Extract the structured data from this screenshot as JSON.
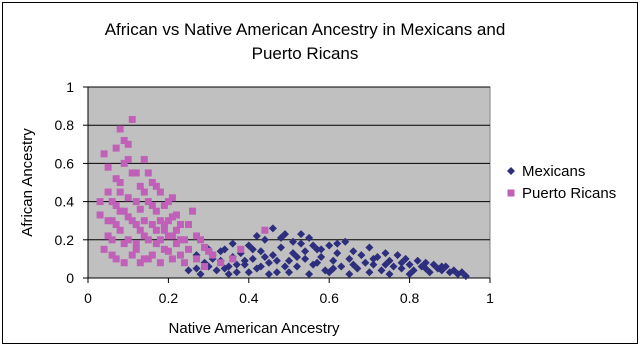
{
  "chart_data": {
    "type": "scatter",
    "title_line1": "African vs Native American Ancestry in Mexicans and",
    "title_line2": "Puerto Ricans",
    "xlabel": "Native American Ancestry",
    "ylabel": "African Ancestry",
    "xlim": [
      0,
      1
    ],
    "ylim": [
      0,
      1
    ],
    "x_ticks": [
      "0",
      "0.2",
      "0.4",
      "0.6",
      "0.8",
      "1"
    ],
    "y_ticks": [
      "0",
      "0.2",
      "0.4",
      "0.6",
      "0.8",
      "1"
    ],
    "grid": "horizontal",
    "plot_background": "#c0c0c0",
    "legend_position": "right",
    "series": [
      {
        "name": "Mexicans",
        "marker": "diamond",
        "color": "#2e2e7e",
        "points": [
          [
            0.27,
            0.05
          ],
          [
            0.29,
            0.08
          ],
          [
            0.31,
            0.12
          ],
          [
            0.32,
            0.04
          ],
          [
            0.33,
            0.09
          ],
          [
            0.34,
            0.15
          ],
          [
            0.35,
            0.06
          ],
          [
            0.36,
            0.11
          ],
          [
            0.37,
            0.03
          ],
          [
            0.38,
            0.13
          ],
          [
            0.39,
            0.07
          ],
          [
            0.4,
            0.17
          ],
          [
            0.41,
            0.1
          ],
          [
            0.42,
            0.05
          ],
          [
            0.43,
            0.14
          ],
          [
            0.44,
            0.2
          ],
          [
            0.45,
            0.08
          ],
          [
            0.46,
            0.12
          ],
          [
            0.47,
            0.03
          ],
          [
            0.48,
            0.16
          ],
          [
            0.49,
            0.23
          ],
          [
            0.5,
            0.09
          ],
          [
            0.51,
            0.13
          ],
          [
            0.52,
            0.06
          ],
          [
            0.53,
            0.18
          ],
          [
            0.54,
            0.1
          ],
          [
            0.55,
            0.21
          ],
          [
            0.56,
            0.07
          ],
          [
            0.57,
            0.15
          ],
          [
            0.58,
            0.11
          ],
          [
            0.59,
            0.04
          ],
          [
            0.6,
            0.17
          ],
          [
            0.61,
            0.09
          ],
          [
            0.62,
            0.13
          ],
          [
            0.63,
            0.06
          ],
          [
            0.64,
            0.19
          ],
          [
            0.65,
            0.1
          ],
          [
            0.66,
            0.14
          ],
          [
            0.67,
            0.05
          ],
          [
            0.68,
            0.12
          ],
          [
            0.69,
            0.08
          ],
          [
            0.7,
            0.16
          ],
          [
            0.71,
            0.07
          ],
          [
            0.72,
            0.11
          ],
          [
            0.73,
            0.04
          ],
          [
            0.74,
            0.13
          ],
          [
            0.75,
            0.09
          ],
          [
            0.76,
            0.06
          ],
          [
            0.77,
            0.12
          ],
          [
            0.78,
            0.05
          ],
          [
            0.79,
            0.1
          ],
          [
            0.8,
            0.07
          ],
          [
            0.81,
            0.04
          ],
          [
            0.82,
            0.09
          ],
          [
            0.83,
            0.06
          ],
          [
            0.84,
            0.08
          ],
          [
            0.85,
            0.03
          ],
          [
            0.86,
            0.07
          ],
          [
            0.87,
            0.05
          ],
          [
            0.88,
            0.04
          ],
          [
            0.89,
            0.06
          ],
          [
            0.9,
            0.03
          ],
          [
            0.91,
            0.04
          ],
          [
            0.92,
            0.02
          ],
          [
            0.93,
            0.03
          ],
          [
            0.94,
            0.01
          ],
          [
            0.28,
            0.02
          ],
          [
            0.3,
            0.06
          ],
          [
            0.35,
            0.02
          ],
          [
            0.4,
            0.03
          ],
          [
            0.45,
            0.02
          ],
          [
            0.5,
            0.03
          ],
          [
            0.55,
            0.02
          ],
          [
            0.6,
            0.03
          ],
          [
            0.65,
            0.02
          ],
          [
            0.7,
            0.03
          ],
          [
            0.75,
            0.02
          ],
          [
            0.8,
            0.02
          ],
          [
            0.46,
            0.26
          ],
          [
            0.51,
            0.19
          ],
          [
            0.42,
            0.22
          ],
          [
            0.56,
            0.17
          ],
          [
            0.62,
            0.18
          ],
          [
            0.36,
            0.18
          ],
          [
            0.33,
            0.14
          ],
          [
            0.31,
            0.1
          ],
          [
            0.27,
            0.12
          ],
          [
            0.25,
            0.04
          ],
          [
            0.3,
            0.15
          ],
          [
            0.48,
            0.21
          ],
          [
            0.53,
            0.23
          ],
          [
            0.58,
            0.15
          ],
          [
            0.44,
            0.11
          ],
          [
            0.39,
            0.09
          ],
          [
            0.43,
            0.06
          ],
          [
            0.47,
            0.09
          ],
          [
            0.52,
            0.11
          ],
          [
            0.57,
            0.08
          ],
          [
            0.61,
            0.05
          ],
          [
            0.66,
            0.07
          ],
          [
            0.71,
            0.1
          ],
          [
            0.74,
            0.07
          ],
          [
            0.78,
            0.08
          ],
          [
            0.84,
            0.05
          ],
          [
            0.88,
            0.06
          ],
          [
            0.41,
            0.15
          ],
          [
            0.37,
            0.07
          ],
          [
            0.34,
            0.05
          ],
          [
            0.54,
            0.14
          ],
          [
            0.49,
            0.06
          ]
        ]
      },
      {
        "name": "Puerto Ricans",
        "marker": "square",
        "color": "#c060b8",
        "points": [
          [
            0.03,
            0.33
          ],
          [
            0.04,
            0.65
          ],
          [
            0.05,
            0.22
          ],
          [
            0.05,
            0.45
          ],
          [
            0.06,
            0.3
          ],
          [
            0.06,
            0.12
          ],
          [
            0.07,
            0.52
          ],
          [
            0.07,
            0.38
          ],
          [
            0.08,
            0.78
          ],
          [
            0.08,
            0.25
          ],
          [
            0.09,
            0.6
          ],
          [
            0.09,
            0.18
          ],
          [
            0.1,
            0.42
          ],
          [
            0.1,
            0.7
          ],
          [
            0.11,
            0.83
          ],
          [
            0.11,
            0.3
          ],
          [
            0.12,
            0.55
          ],
          [
            0.12,
            0.15
          ],
          [
            0.13,
            0.36
          ],
          [
            0.13,
            0.48
          ],
          [
            0.14,
            0.62
          ],
          [
            0.14,
            0.22
          ],
          [
            0.15,
            0.4
          ],
          [
            0.15,
            0.1
          ],
          [
            0.16,
            0.28
          ],
          [
            0.16,
            0.5
          ],
          [
            0.17,
            0.35
          ],
          [
            0.17,
            0.18
          ],
          [
            0.18,
            0.45
          ],
          [
            0.18,
            0.08
          ],
          [
            0.19,
            0.25
          ],
          [
            0.19,
            0.38
          ],
          [
            0.2,
            0.3
          ],
          [
            0.2,
            0.14
          ],
          [
            0.21,
            0.22
          ],
          [
            0.21,
            0.42
          ],
          [
            0.22,
            0.18
          ],
          [
            0.22,
            0.33
          ],
          [
            0.23,
            0.12
          ],
          [
            0.23,
            0.28
          ],
          [
            0.24,
            0.2
          ],
          [
            0.24,
            0.08
          ],
          [
            0.25,
            0.15
          ],
          [
            0.26,
            0.35
          ],
          [
            0.27,
            0.1
          ],
          [
            0.28,
            0.2
          ],
          [
            0.29,
            0.06
          ],
          [
            0.3,
            0.14
          ],
          [
            0.33,
            0.08
          ],
          [
            0.36,
            0.1
          ],
          [
            0.04,
            0.15
          ],
          [
            0.05,
            0.58
          ],
          [
            0.06,
            0.4
          ],
          [
            0.07,
            0.28
          ],
          [
            0.08,
            0.5
          ],
          [
            0.09,
            0.35
          ],
          [
            0.1,
            0.2
          ],
          [
            0.11,
            0.55
          ],
          [
            0.12,
            0.4
          ],
          [
            0.13,
            0.25
          ],
          [
            0.14,
            0.3
          ],
          [
            0.15,
            0.55
          ],
          [
            0.16,
            0.12
          ],
          [
            0.17,
            0.25
          ],
          [
            0.18,
            0.3
          ],
          [
            0.19,
            0.15
          ],
          [
            0.2,
            0.4
          ],
          [
            0.21,
            0.1
          ],
          [
            0.22,
            0.25
          ],
          [
            0.07,
            0.68
          ],
          [
            0.09,
            0.72
          ],
          [
            0.08,
            0.45
          ],
          [
            0.1,
            0.62
          ],
          [
            0.12,
            0.28
          ],
          [
            0.14,
            0.45
          ],
          [
            0.06,
            0.2
          ],
          [
            0.03,
            0.4
          ],
          [
            0.05,
            0.3
          ],
          [
            0.11,
            0.12
          ],
          [
            0.13,
            0.08
          ],
          [
            0.15,
            0.2
          ],
          [
            0.17,
            0.48
          ],
          [
            0.19,
            0.28
          ],
          [
            0.21,
            0.32
          ],
          [
            0.23,
            0.2
          ],
          [
            0.25,
            0.28
          ],
          [
            0.27,
            0.22
          ],
          [
            0.29,
            0.16
          ],
          [
            0.31,
            0.12
          ],
          [
            0.38,
            0.15
          ],
          [
            0.44,
            0.25
          ],
          [
            0.1,
            0.32
          ],
          [
            0.08,
            0.35
          ],
          [
            0.12,
            0.18
          ],
          [
            0.14,
            0.1
          ],
          [
            0.16,
            0.38
          ],
          [
            0.18,
            0.2
          ],
          [
            0.2,
            0.22
          ],
          [
            0.09,
            0.08
          ],
          [
            0.07,
            0.1
          ]
        ]
      }
    ]
  }
}
